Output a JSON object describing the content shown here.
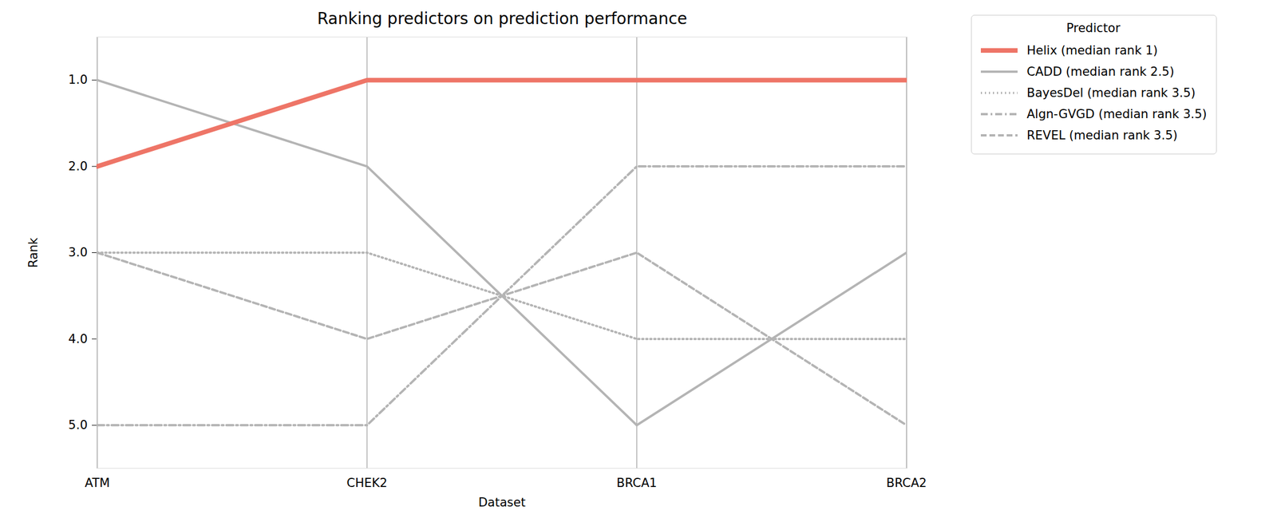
{
  "chart_data": {
    "type": "line",
    "title": "Ranking predictors on prediction performance",
    "x_label": "Dataset",
    "y_label": "Rank",
    "legend_title": "Predictor",
    "categories": [
      "ATM",
      "CHEK2",
      "BRCA1",
      "BRCA2"
    ],
    "series": [
      {
        "name": "Helix (median rank 1)",
        "color": "#ee7567",
        "line_style": "solid",
        "values": [
          2,
          1,
          1,
          1
        ]
      },
      {
        "name": "CADD (median rank 2.5)",
        "color": "#b4b4b4",
        "line_style": "solid",
        "values": [
          1,
          2,
          5,
          3
        ]
      },
      {
        "name": "BayesDel (median rank 3.5)",
        "color": "#b4b4b4",
        "line_style": "dotted",
        "values": [
          3,
          3,
          4,
          4
        ]
      },
      {
        "name": "Algn-GVGD (median rank 3.5)",
        "color": "#b4b4b4",
        "line_style": "dashdot",
        "values": [
          5,
          5,
          2,
          2
        ]
      },
      {
        "name": "REVEL (median rank 3.5)",
        "color": "#b4b4b4",
        "line_style": "dashed",
        "values": [
          3,
          4,
          3,
          5
        ]
      }
    ],
    "ylim": [
      5.5,
      0.5
    ],
    "yticks": [
      1,
      2,
      3,
      4,
      5
    ],
    "grid": true,
    "legend": "upper right"
  }
}
